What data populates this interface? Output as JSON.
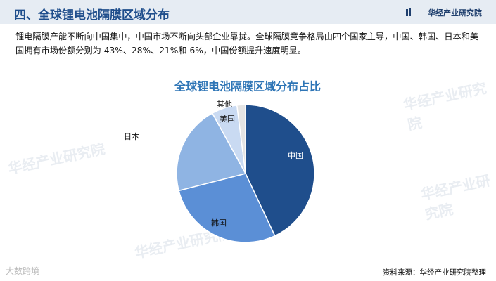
{
  "header": {
    "title": "四、全球锂电池隔膜区域分布",
    "brand": "华经产业研究院"
  },
  "paragraph": "锂电隔膜产能不断向中国集中，中国市场不断向头部企业靠拢。全球隔膜竞争格局由四个国家主导，中国、韩国、日本和美国拥有市场份额分别为 43%、28%、21%和 6%，中国份额提升速度明显。",
  "chart_data": {
    "type": "pie",
    "title": "全球锂电池隔膜区域分布占比",
    "categories": [
      "中国",
      "韩国",
      "日本",
      "美国",
      "其他"
    ],
    "values": [
      43,
      28,
      21,
      6,
      2
    ],
    "colors": [
      "#1f4e8c",
      "#5b8fd6",
      "#8fb4e3",
      "#c9daf2",
      "#e4e4e4"
    ]
  },
  "watermarks": [
    "华经产业研究院",
    "华经产业研究院",
    "华经产业研究院",
    "华经产业研究院"
  ],
  "footer": {
    "logo": "大数跨境",
    "source": "资料来源：华经产业研究院整理"
  }
}
